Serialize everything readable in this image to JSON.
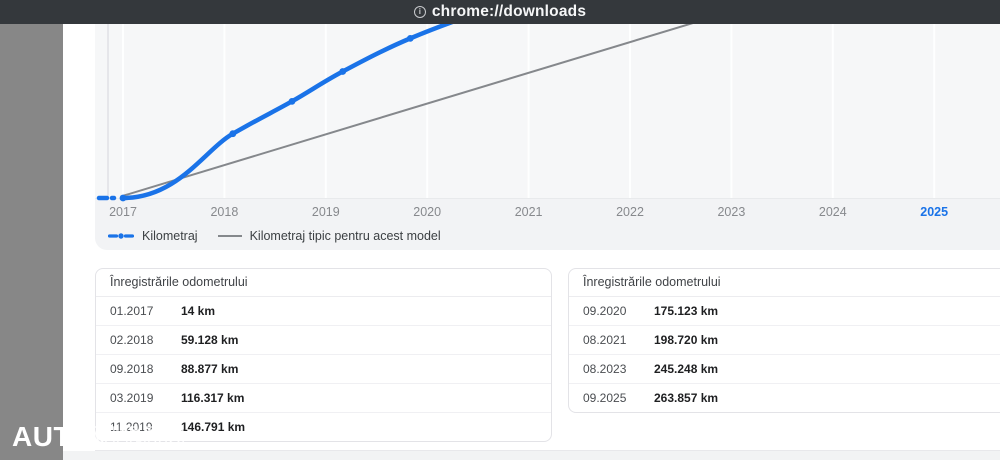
{
  "address_bar": {
    "url": "chrome://downloads",
    "icon": "page-info-icon"
  },
  "colors": {
    "accent_blue": "#1a73e8",
    "typical_line_gray": "#85888c",
    "topbar_dark": "#34383c",
    "panel_gray": "#f2f3f5",
    "plot_gray": "#f6f7f8",
    "photo_strip_gray": "#878787"
  },
  "chart_data": {
    "type": "line",
    "title": "",
    "xlabel": "",
    "ylabel": "",
    "x_ticks": [
      "2017",
      "2018",
      "2019",
      "2020",
      "2021",
      "2022",
      "2023",
      "2024",
      "2025"
    ],
    "active_tick": "2025",
    "ylim": [
      0,
      160000
    ],
    "grid": "vertical-year-gridlines",
    "legend_position": "bottom-left",
    "series": [
      {
        "name": "Kilometraj",
        "color": "#1a73e8",
        "style": "thick-line-with-dot-markers, dashed lead-in",
        "points": [
          [
            "01.2017",
            14
          ],
          [
            "02.2018",
            59128
          ],
          [
            "09.2018",
            88877
          ],
          [
            "03.2019",
            116317
          ],
          [
            "11.2019",
            146791
          ],
          [
            "09.2020",
            175123
          ],
          [
            "08.2021",
            198720
          ],
          [
            "08.2023",
            245248
          ],
          [
            "09.2025",
            263857
          ]
        ]
      },
      {
        "name": "Kilometraj tipic pentru acest model",
        "color": "#85888c",
        "style": "thin-straight-line",
        "estimated_from_pixels": true,
        "points": [
          [
            "01.2017",
            2000
          ],
          [
            "09.2025",
            247000
          ]
        ]
      }
    ]
  },
  "tables": [
    {
      "title": "Înregistrările odometrului",
      "rows": [
        [
          "01.2017",
          "14 km"
        ],
        [
          "02.2018",
          "59.128 km"
        ],
        [
          "09.2018",
          "88.877 km"
        ],
        [
          "03.2019",
          "116.317 km"
        ],
        [
          "11.2019",
          "146.791 km"
        ]
      ]
    },
    {
      "title": "Înregistrările odometrului",
      "rows": [
        [
          "09.2020",
          "175.123 km"
        ],
        [
          "08.2021",
          "198.720 km"
        ],
        [
          "08.2023",
          "245.248 km"
        ],
        [
          "09.2025",
          "263.857 km"
        ]
      ]
    }
  ],
  "watermark": {
    "solid": "AUT",
    "outline": "OVIT.RO"
  }
}
